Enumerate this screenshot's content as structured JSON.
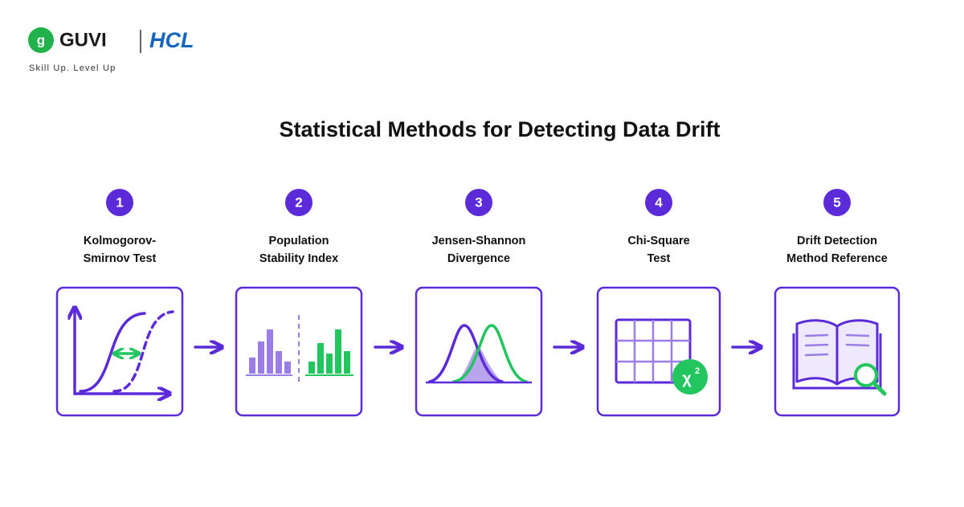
{
  "header": {
    "logo_text": "GUVI",
    "partner": "HCL",
    "tagline": "Skill Up. Level Up"
  },
  "title": "Statistical Methods for Detecting Data Drift",
  "steps": [
    {
      "number": 1,
      "label": [
        "Kolmogorov-",
        "Smirnov Test"
      ]
    },
    {
      "number": 2,
      "label": [
        "Population",
        "Stability Index"
      ]
    },
    {
      "number": 3,
      "label": [
        "Jensen-Shannon",
        "Divergence"
      ]
    },
    {
      "number": 4,
      "label": [
        "Chi-Square",
        "Test"
      ]
    },
    {
      "number": 5,
      "label": [
        "Drift Detection",
        "Method Reference"
      ]
    }
  ]
}
